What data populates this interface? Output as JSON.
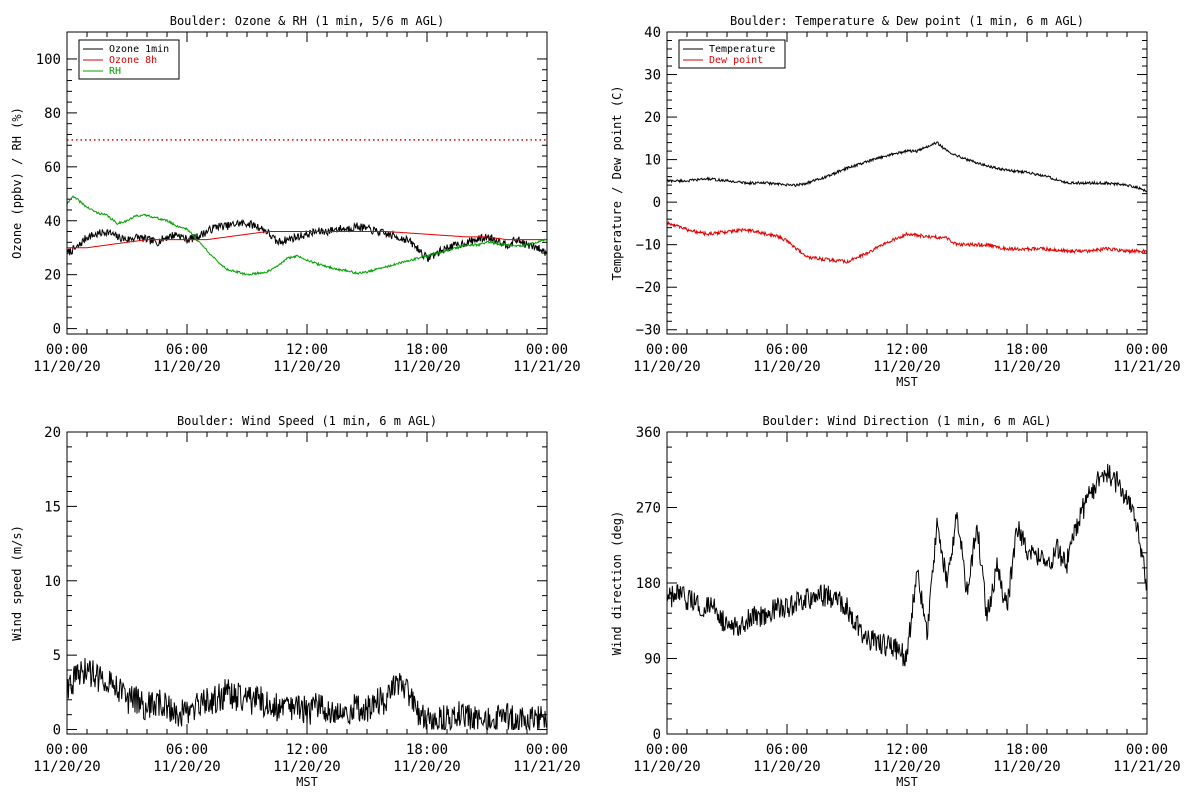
{
  "colors": {
    "black": "#000000",
    "red": "#e00000",
    "green": "#00a000"
  },
  "chart_data": [
    {
      "type": "line",
      "title": "Boulder: Ozone & RH (1 min, 5/6 m AGL)",
      "xlabel": "",
      "ylabel": "Ozone (ppbv) / RH (%)",
      "xlim": [
        0,
        24
      ],
      "ylim": [
        -2,
        110
      ],
      "xticks": [
        0,
        6,
        12,
        18,
        24
      ],
      "xtick_labels": [
        [
          "00:00",
          "11/20/20"
        ],
        [
          "06:00",
          "11/20/20"
        ],
        [
          "12:00",
          "11/20/20"
        ],
        [
          "18:00",
          "11/20/20"
        ],
        [
          "00:00",
          "11/21/20"
        ]
      ],
      "yticks": [
        0,
        20,
        40,
        60,
        80,
        100
      ],
      "ytick_labels": [
        "0",
        "20",
        "40",
        "60",
        "80",
        "100"
      ],
      "legend_position": "top-left",
      "hlines": [
        {
          "y": 70,
          "color": "#e00000",
          "style": "dotted"
        }
      ],
      "series": [
        {
          "name": "Ozone 1min",
          "color": "#000000",
          "x": [
            0,
            0.5,
            1,
            1.5,
            2,
            2.5,
            3,
            3.5,
            4,
            4.5,
            5,
            5.5,
            6,
            6.5,
            7,
            7.5,
            8,
            8.5,
            9,
            9.5,
            10,
            10.5,
            11,
            11.5,
            12,
            12.5,
            13,
            13.5,
            14,
            14.5,
            15,
            15.5,
            16,
            16.5,
            17,
            17.5,
            18,
            18.5,
            19,
            19.5,
            20,
            20.5,
            21,
            21.5,
            22,
            22.5,
            23,
            23.5,
            24
          ],
          "y": [
            28,
            30,
            34,
            35,
            36,
            34,
            33,
            34,
            33,
            32,
            34,
            35,
            33,
            34,
            36,
            38,
            38,
            39,
            39,
            38,
            36,
            32,
            33,
            34,
            35,
            36,
            36,
            37,
            37,
            38,
            37,
            36,
            35,
            34,
            33,
            30,
            26,
            28,
            30,
            31,
            32,
            33,
            34,
            33,
            31,
            33,
            31,
            30,
            28
          ],
          "noise": 1.5
        },
        {
          "name": "Ozone 8h",
          "color": "#e00000",
          "x": [
            0,
            1,
            2,
            3,
            4,
            5,
            6,
            7,
            8,
            9,
            10,
            11,
            12,
            13,
            14,
            15,
            16,
            17,
            18,
            19,
            20,
            21,
            22,
            23,
            24
          ],
          "y": [
            30,
            30,
            31,
            32,
            33,
            33,
            33,
            33,
            34,
            35,
            36,
            36,
            36,
            36,
            36,
            36,
            36,
            35.5,
            35,
            34.5,
            34,
            34,
            33,
            33,
            33
          ]
        },
        {
          "name": "RH",
          "color": "#00a000",
          "x": [
            0,
            0.25,
            0.5,
            1,
            1.5,
            2,
            2.5,
            3,
            3.5,
            4,
            4.5,
            5,
            5.5,
            6,
            6.5,
            7,
            7.5,
            8,
            8.5,
            9,
            9.5,
            10,
            10.5,
            11,
            11.5,
            12,
            12.5,
            13,
            13.5,
            14,
            14.5,
            15,
            15.5,
            16,
            16.5,
            17,
            17.5,
            18,
            18.5,
            19,
            19.5,
            20,
            20.5,
            21,
            21.5,
            22,
            22.5,
            23,
            23.5,
            24
          ],
          "y": [
            46,
            49,
            48,
            45,
            43,
            42,
            39,
            40,
            42,
            42,
            41,
            40,
            38,
            37,
            33,
            29,
            25,
            22,
            21,
            20,
            20.5,
            21,
            23,
            26,
            27,
            25.5,
            24,
            23,
            22,
            21.5,
            20.5,
            21,
            22,
            23,
            24,
            25,
            26,
            27,
            28,
            29,
            30,
            31,
            31,
            32,
            31.5,
            31,
            30.5,
            31,
            32,
            33
          ],
          "noise": 0.4
        }
      ]
    },
    {
      "type": "line",
      "title": "Boulder: Temperature & Dew point (1 min, 6 m AGL)",
      "xlabel": "MST",
      "ylabel": "Temperature / Dew point (C)",
      "xlim": [
        0,
        24
      ],
      "ylim": [
        -31,
        40
      ],
      "xticks": [
        0,
        6,
        12,
        18,
        24
      ],
      "xtick_labels": [
        [
          "00:00",
          "11/20/20"
        ],
        [
          "06:00",
          "11/20/20"
        ],
        [
          "12:00",
          "11/20/20"
        ],
        [
          "18:00",
          "11/20/20"
        ],
        [
          "00:00",
          "11/21/20"
        ]
      ],
      "yticks": [
        -30,
        -20,
        -10,
        0,
        10,
        20,
        30,
        40
      ],
      "ytick_labels": [
        "−30",
        "−20",
        "−10",
        "0",
        "10",
        "20",
        "30",
        "40"
      ],
      "legend_position": "top-left",
      "series": [
        {
          "name": "Temperature",
          "color": "#000000",
          "x": [
            0,
            1,
            2,
            3,
            4,
            5,
            6,
            6.5,
            7,
            8,
            9,
            10,
            11,
            12,
            12.5,
            13,
            13.5,
            14,
            15,
            16,
            17,
            18,
            19,
            20,
            21,
            22,
            23,
            23.5,
            24
          ],
          "y": [
            5,
            5,
            5.5,
            5,
            4.5,
            4.5,
            4,
            4,
            4.5,
            6,
            8,
            9.5,
            11,
            12,
            12,
            13,
            14,
            12,
            10,
            8.5,
            7.5,
            7,
            6,
            4.5,
            4.5,
            4.5,
            4,
            3.5,
            2.5
          ],
          "noise": 0.3
        },
        {
          "name": "Dew point",
          "color": "#e00000",
          "x": [
            0,
            0.5,
            1,
            2,
            3,
            4,
            5,
            5.5,
            6,
            6.5,
            7,
            8,
            9,
            10,
            11,
            12,
            13,
            14,
            14.5,
            15,
            16,
            17,
            18,
            19,
            20,
            21,
            22,
            23,
            24
          ],
          "y": [
            -5,
            -5.5,
            -6.5,
            -7.5,
            -7,
            -6.5,
            -7.5,
            -8,
            -9,
            -11,
            -13,
            -13.5,
            -14,
            -12,
            -9.5,
            -7.5,
            -8,
            -8.5,
            -10,
            -10,
            -10,
            -11,
            -11,
            -11,
            -11.5,
            -11.5,
            -11,
            -11.5,
            -11.5
          ],
          "noise": 0.4
        }
      ]
    },
    {
      "type": "line",
      "title": "Boulder: Wind Speed (1 min, 6 m AGL)",
      "xlabel": "MST",
      "ylabel": "Wind speed (m/s)",
      "xlim": [
        0,
        24
      ],
      "ylim": [
        -0.3,
        20
      ],
      "xticks": [
        0,
        6,
        12,
        18,
        24
      ],
      "xtick_labels": [
        [
          "00:00",
          "11/20/20"
        ],
        [
          "06:00",
          "11/20/20"
        ],
        [
          "12:00",
          "11/20/20"
        ],
        [
          "18:00",
          "11/20/20"
        ],
        [
          "00:00",
          "11/21/20"
        ]
      ],
      "yticks": [
        0,
        5,
        10,
        15,
        20
      ],
      "ytick_labels": [
        "0",
        "5",
        "10",
        "15",
        "20"
      ],
      "series": [
        {
          "name": "",
          "color": "#000000",
          "x": [
            0,
            0.5,
            1,
            1.5,
            2,
            2.5,
            3,
            3.5,
            4,
            4.5,
            5,
            5.5,
            6,
            6.5,
            7,
            7.5,
            8,
            8.5,
            9,
            9.5,
            10,
            10.5,
            11,
            11.5,
            12,
            12.5,
            13,
            13.5,
            14,
            14.5,
            15,
            15.5,
            16,
            16.5,
            17,
            17.5,
            18,
            18.5,
            19,
            19.5,
            20,
            20.5,
            21,
            21.5,
            22,
            22.5,
            23,
            23.5,
            24
          ],
          "y": [
            3,
            3.5,
            4,
            3.5,
            3.5,
            3,
            2,
            2,
            1.5,
            1.8,
            1.5,
            1.2,
            1,
            1.5,
            1.8,
            2,
            2.5,
            2.2,
            2,
            2,
            1.8,
            1.5,
            1.5,
            1.5,
            1.2,
            1.5,
            1.5,
            1.2,
            1.2,
            1.5,
            1.5,
            1.8,
            2,
            3,
            2.5,
            1,
            0.5,
            0.5,
            0.7,
            1,
            0.8,
            0.5,
            0.5,
            0.6,
            0.8,
            0.5,
            0.5,
            0.8,
            0.8
          ],
          "noise": 1.0
        }
      ]
    },
    {
      "type": "line",
      "title": "Boulder: Wind Direction (1 min, 6 m AGL)",
      "xlabel": "MST",
      "ylabel": "Wind direction (deg)",
      "xlim": [
        0,
        24
      ],
      "ylim": [
        0,
        360
      ],
      "xticks": [
        0,
        6,
        12,
        18,
        24
      ],
      "xtick_labels": [
        [
          "00:00",
          "11/20/20"
        ],
        [
          "06:00",
          "11/20/20"
        ],
        [
          "12:00",
          "11/20/20"
        ],
        [
          "18:00",
          "11/20/20"
        ],
        [
          "00:00",
          "11/21/20"
        ]
      ],
      "yticks": [
        0,
        90,
        180,
        270,
        360
      ],
      "ytick_labels": [
        "0",
        "90",
        "180",
        "270",
        "360"
      ],
      "series": [
        {
          "name": "",
          "color": "#000000",
          "x": [
            0,
            0.5,
            1,
            1.5,
            2,
            2.5,
            3,
            3.5,
            4,
            4.5,
            5,
            5.5,
            6,
            6.5,
            7,
            7.5,
            8,
            8.5,
            9,
            9.5,
            10,
            10.5,
            11,
            11.5,
            12,
            12.5,
            13,
            13.5,
            14,
            14.5,
            15,
            15.5,
            16,
            16.5,
            17,
            17.5,
            18,
            18.5,
            19,
            19.5,
            20,
            20.5,
            21,
            21.5,
            22,
            22.5,
            23,
            23.5,
            24
          ],
          "y": [
            160,
            165,
            160,
            155,
            150,
            150,
            125,
            130,
            135,
            140,
            145,
            150,
            150,
            155,
            160,
            165,
            165,
            160,
            150,
            130,
            115,
            110,
            105,
            100,
            90,
            200,
            120,
            250,
            180,
            260,
            170,
            250,
            140,
            200,
            150,
            250,
            220,
            210,
            200,
            220,
            205,
            250,
            280,
            300,
            310,
            300,
            280,
            250,
            180
          ],
          "noise": 14
        }
      ]
    }
  ]
}
